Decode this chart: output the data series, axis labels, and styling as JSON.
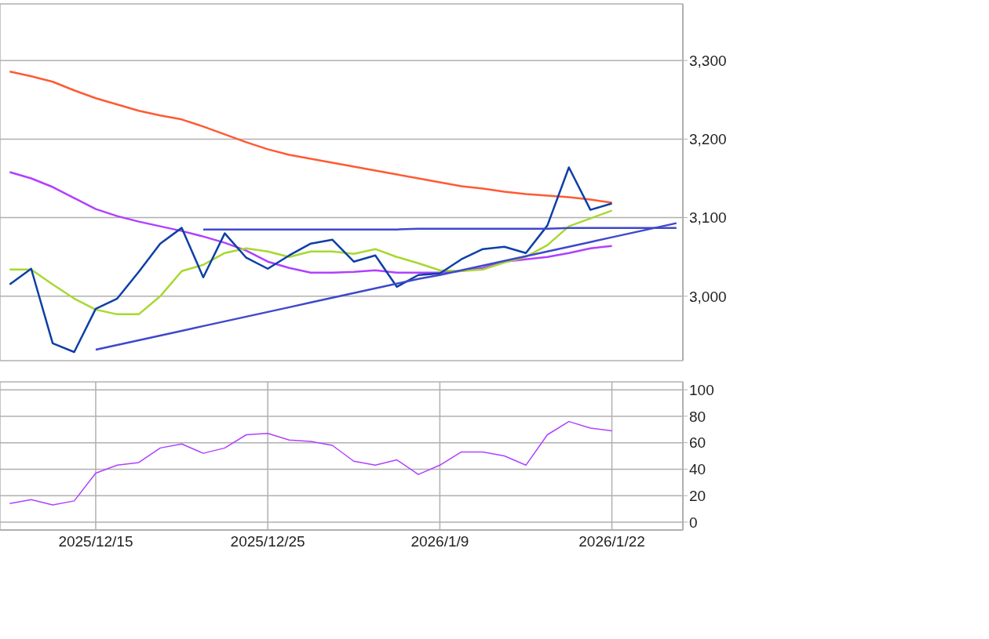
{
  "chart_data": [
    {
      "type": "line",
      "categories": [
        null,
        null,
        null,
        null,
        "2025/12/15",
        null,
        null,
        null,
        null,
        null,
        null,
        null,
        "2025/12/25",
        null,
        null,
        null,
        null,
        null,
        null,
        null,
        "2026/1/9",
        null,
        null,
        null,
        null,
        null,
        null,
        null,
        "2026/1/22",
        null,
        null,
        null
      ],
      "series": [
        {
          "color": "#ff5a33",
          "values": [
            3286,
            3280,
            3273,
            3262,
            3252,
            3244,
            3236,
            3230,
            3225,
            3216,
            3206,
            3196,
            3187,
            3180,
            3175,
            3170,
            3165,
            3160,
            3155,
            3150,
            3145,
            3140,
            3137,
            3133,
            3130,
            3128,
            3126,
            3123,
            3119,
            null,
            null,
            null
          ]
        },
        {
          "color": "#b040ff",
          "values": [
            3158,
            3150,
            3139,
            3125,
            3111,
            3102,
            3095,
            3089,
            3083,
            3076,
            3068,
            3058,
            3044,
            3036,
            3030,
            3030,
            3031,
            3033,
            3030,
            3030,
            3030,
            3032,
            3036,
            3044,
            3047,
            3050,
            3055,
            3061,
            3064,
            null,
            null,
            null
          ]
        },
        {
          "color": "#a8d830",
          "values": [
            3034,
            3034,
            3015,
            2997,
            2983,
            2977,
            2977,
            3000,
            3032,
            3040,
            3055,
            3061,
            3057,
            3050,
            3057,
            3057,
            3054,
            3060,
            3050,
            3042,
            3033,
            3032,
            3034,
            3043,
            3050,
            3065,
            3089,
            3099,
            3109,
            null,
            null,
            null
          ]
        },
        {
          "color": "#0d3fa6",
          "values": [
            3015,
            3035,
            2940,
            2929,
            2984,
            2997,
            3031,
            3067,
            3087,
            3024,
            3080,
            3049,
            3035,
            3052,
            3067,
            3072,
            3044,
            3052,
            3012,
            3027,
            3029,
            3047,
            3060,
            3063,
            3055,
            3090,
            3164,
            3110,
            3118,
            null,
            null,
            null
          ]
        },
        {
          "color": "#3f48cc",
          "values": [
            null,
            null,
            null,
            null,
            2932,
            2938,
            2944,
            2950,
            2956,
            2962,
            2968,
            2974,
            2980,
            2986,
            2992,
            2998,
            3004,
            3010,
            3016,
            3022,
            3027,
            3033,
            3039,
            3045,
            3051,
            3057,
            3063,
            3069,
            3075,
            3081,
            3087,
            3093
          ]
        },
        {
          "color": "#3f48cc",
          "values": [
            null,
            null,
            null,
            null,
            null,
            null,
            null,
            null,
            null,
            3085,
            3085,
            3085,
            3085,
            3085,
            3085,
            3085,
            3085,
            3085,
            3085,
            3086,
            3086,
            3086,
            3086,
            3086,
            3086,
            3086,
            3087,
            3087,
            3087,
            3087,
            3087,
            3087
          ]
        }
      ],
      "ylim": [
        2918,
        3372
      ],
      "yticks": [
        {
          "value": 3000,
          "label": "3,000"
        },
        {
          "value": 3100,
          "label": "3,100"
        },
        {
          "value": 3200,
          "label": "3,200"
        },
        {
          "value": 3300,
          "label": "3,300"
        }
      ],
      "grid": true,
      "marker": "none",
      "tick_labels": "y"
    },
    {
      "type": "line",
      "categories": [
        null,
        null,
        null,
        null,
        "2025/12/15",
        null,
        null,
        null,
        null,
        null,
        null,
        null,
        "2025/12/25",
        null,
        null,
        null,
        null,
        null,
        null,
        null,
        "2026/1/9",
        null,
        null,
        null,
        null,
        null,
        null,
        null,
        "2026/1/22",
        null,
        null,
        null
      ],
      "series": [
        {
          "color": "#b040ff",
          "values": [
            14,
            17,
            13,
            16,
            37,
            43,
            45,
            56,
            59,
            52,
            56,
            66,
            67,
            62,
            61,
            58,
            46,
            43,
            47,
            36,
            43,
            53,
            53,
            50,
            43,
            66,
            76,
            71,
            69,
            null,
            null,
            null
          ]
        }
      ],
      "ylim": [
        -6,
        106
      ],
      "yticks": [
        0,
        20,
        40,
        60,
        80,
        100
      ],
      "grid": true,
      "marker": "none"
    }
  ]
}
